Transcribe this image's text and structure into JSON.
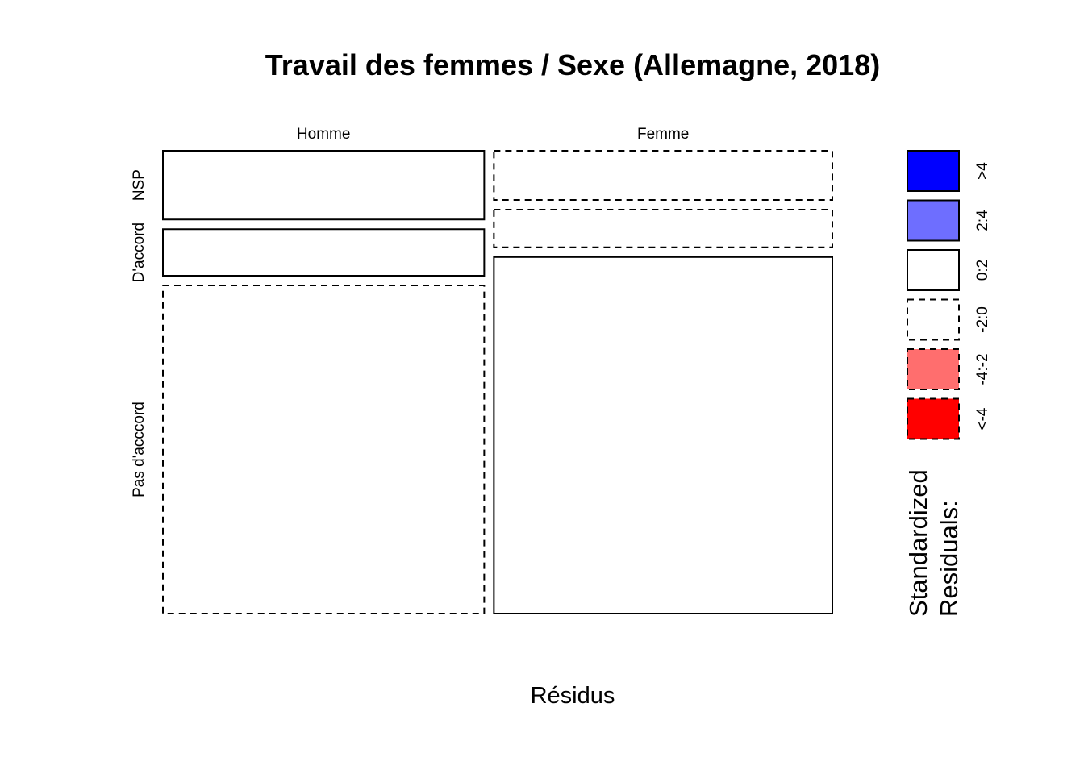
{
  "chart_data": {
    "type": "mosaic",
    "title": "Travail des femmes / Sexe (Allemagne, 2018)",
    "xlabel": "Résidus",
    "columns": [
      "Homme",
      "Femme"
    ],
    "rows": [
      "NSP",
      "D'accord",
      "Pas d'acccord"
    ],
    "column_proportions": [
      0.487,
      0.513
    ],
    "row_proportions": {
      "Homme": [
        0.155,
        0.105,
        0.74
      ],
      "Femme": [
        0.111,
        0.085,
        0.804
      ]
    },
    "residual_class": {
      "Homme": [
        "0:2",
        "0:2",
        "-2:0"
      ],
      "Femme": [
        "-2:0",
        "-2:0",
        "0:2"
      ]
    },
    "legend": {
      "title_lines": [
        "Standardized",
        "Residuals:"
      ],
      "items": [
        {
          "label": ">4",
          "color": "#0000FF",
          "dashed": false
        },
        {
          "label": "2:4",
          "color": "#6E6EFF",
          "dashed": false
        },
        {
          "label": "0:2",
          "color": "#FFFFFF",
          "dashed": false
        },
        {
          "label": "-2:0",
          "color": "#FFFFFF",
          "dashed": true
        },
        {
          "label": "-4:-2",
          "color": "#FF6E6E",
          "dashed": true
        },
        {
          "label": "<-4",
          "color": "#FF0000",
          "dashed": true
        }
      ]
    }
  }
}
